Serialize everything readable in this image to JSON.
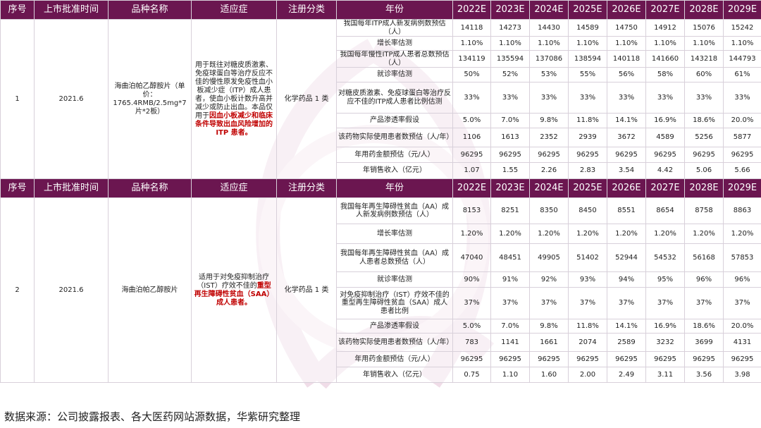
{
  "headers": [
    "序号",
    "上市批准时间",
    "品种名称",
    "适应症",
    "注册分类",
    "年份",
    "2022E",
    "2023E",
    "2024E",
    "2025E",
    "2026E",
    "2027E",
    "2028E",
    "2029E"
  ],
  "drugs": [
    {
      "no": "1",
      "date": "2021.6",
      "name": "海曲泊帕乙醇胺片（单价：1765.4RMB/2.5mg*7片*2板）",
      "indication_plain": "用于既往对糖皮质激素、免疫球蛋白等治疗反应不佳的慢性原发免疫性血小板减少症（ITP）成人患者，使血小板计数升高并减少或防止出血。本品仅用于",
      "indication_red": "因血小板减少和临床条件导致出血风险增加的 ITP 患者。",
      "category": "化学药品 1 类",
      "rows": [
        {
          "metric": "我国每年ITP成人新发病例数预估（人）",
          "values": [
            "14118",
            "14273",
            "14430",
            "14589",
            "14750",
            "14912",
            "15076",
            "15242"
          ]
        },
        {
          "metric": "增长率估测",
          "values": [
            "1.10%",
            "1.10%",
            "1.10%",
            "1.10%",
            "1.10%",
            "1.10%",
            "1.10%",
            "1.10%"
          ]
        },
        {
          "metric": "我国每年慢性ITP成人患者总数预估（人）",
          "values": [
            "134119",
            "135594",
            "137086",
            "138594",
            "140118",
            "141660",
            "143218",
            "144793"
          ]
        },
        {
          "metric": "就诊率估测",
          "values": [
            "50%",
            "52%",
            "53%",
            "55%",
            "56%",
            "58%",
            "60%",
            "61%"
          ]
        },
        {
          "metric": "对糖皮质激素、免疫球蛋白等治疗反应不佳的ITP成人患者比例估测",
          "values": [
            "33%",
            "33%",
            "33%",
            "33%",
            "33%",
            "33%",
            "33%",
            "33%"
          ]
        },
        {
          "metric": "产品渗透率假设",
          "values": [
            "5.0%",
            "7.0%",
            "9.8%",
            "11.8%",
            "14.1%",
            "16.9%",
            "18.6%",
            "20.0%"
          ]
        },
        {
          "metric": "该药物实际使用患者数预估（人/年）",
          "values": [
            "1106",
            "1613",
            "2352",
            "2939",
            "3672",
            "4589",
            "5256",
            "5877"
          ]
        },
        {
          "metric": "年用药金额预估（元/人）",
          "values": [
            "96295",
            "96295",
            "96295",
            "96295",
            "96295",
            "96295",
            "96295",
            "96295"
          ]
        },
        {
          "metric": "年销售收入（亿元）",
          "values": [
            "1.07",
            "1.55",
            "2.26",
            "2.83",
            "3.54",
            "4.42",
            "5.06",
            "5.66"
          ]
        }
      ]
    },
    {
      "no": "2",
      "date": "2021.6",
      "name": "海曲泊帕乙醇胺片",
      "indication_plain": "适用于对免疫抑制治疗（IST）疗效不佳的",
      "indication_red": "重型再生障碍性贫血（SAA）成人患者。",
      "category": "化学药品 1 类",
      "rows": [
        {
          "metric": "我国每年再生障碍性贫血（AA）成人新发病例数预估（人）",
          "values": [
            "8153",
            "8251",
            "8350",
            "8450",
            "8551",
            "8654",
            "8758",
            "8863"
          ]
        },
        {
          "metric": "增长率估测",
          "values": [
            "1.20%",
            "1.20%",
            "1.20%",
            "1.20%",
            "1.20%",
            "1.20%",
            "1.20%",
            "1.20%"
          ]
        },
        {
          "metric": "我国每年再生障碍性贫血（AA）成人患者总数预估（人）",
          "values": [
            "47040",
            "48451",
            "49905",
            "51402",
            "52944",
            "54532",
            "56168",
            "57853"
          ]
        },
        {
          "metric": "就诊率估测",
          "values": [
            "90%",
            "91%",
            "92%",
            "93%",
            "94%",
            "95%",
            "96%",
            "96%"
          ]
        },
        {
          "metric": "对免疫抑制治疗（IST）疗效不佳的重型再生障碍性贫血（SAA）成人患者比例",
          "values": [
            "37%",
            "37%",
            "37%",
            "37%",
            "37%",
            "37%",
            "37%",
            "37%"
          ]
        },
        {
          "metric": "产品渗透率假设",
          "values": [
            "5.0%",
            "7.0%",
            "9.8%",
            "11.8%",
            "14.1%",
            "16.9%",
            "18.6%",
            "20.0%"
          ]
        },
        {
          "metric": "该药物实际使用患者数预估（人/年）",
          "values": [
            "783",
            "1141",
            "1661",
            "2074",
            "2589",
            "3232",
            "3699",
            "4131"
          ]
        },
        {
          "metric": "年用药金额预估（元/人）",
          "values": [
            "96295",
            "96295",
            "96295",
            "96295",
            "96295",
            "96295",
            "96295",
            "96295"
          ]
        },
        {
          "metric": "年销售收入（亿元）",
          "values": [
            "0.75",
            "1.10",
            "1.60",
            "2.00",
            "2.49",
            "3.11",
            "3.56",
            "3.98"
          ]
        }
      ]
    }
  ],
  "source": "数据来源：公司披露报表、各大医药网站源数据，华紫研究整理",
  "colors": {
    "header_bg": "#6b1650",
    "highlight": "#c00000",
    "border": "#d8d0da"
  }
}
